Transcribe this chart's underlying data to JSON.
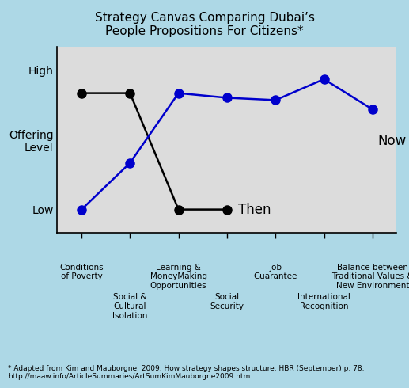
{
  "title": "Strategy Canvas Comparing Dubai’s\nPeople Propositions For Citizens*",
  "background_color": "#add8e6",
  "plot_bg_color": "#dcdcdc",
  "x_categories": [
    "Conditions\nof Poverty",
    "Social &\nCultural\nIsolation",
    "Learning &\nMoneyMaking\nOpportunities",
    "Social\nSecurity",
    "Job\nGuarantee",
    "International\nRecognition",
    "Balance between\nTraditional Values &\nNew Environment"
  ],
  "then_values": [
    3.0,
    3.0,
    0.5,
    0.5,
    null,
    null,
    null
  ],
  "now_values": [
    0.5,
    1.5,
    3.0,
    2.9,
    2.85,
    3.3,
    2.65
  ],
  "ytick_positions": [
    0.5,
    2.0,
    3.5
  ],
  "ytick_labels": [
    "Low",
    "Offering\nLevel",
    "High"
  ],
  "ymin": 0.0,
  "ymax": 4.0,
  "then_color": "#000000",
  "now_color": "#0000cc",
  "then_label": "Then",
  "now_label": "Now",
  "footnote_line1": "* Adapted from Kim and Mauborgne. 2009. How strategy shapes structure. HBR (September) p. 78.",
  "footnote_line2": "http://maaw.info/ArticleSummaries/ArtSumKimMauborgne2009.htm",
  "marker_size": 8,
  "line_width": 1.8,
  "title_fontsize": 11,
  "label_fontsize": 7.5,
  "ytick_fontsize": 10,
  "annotation_fontsize": 12
}
